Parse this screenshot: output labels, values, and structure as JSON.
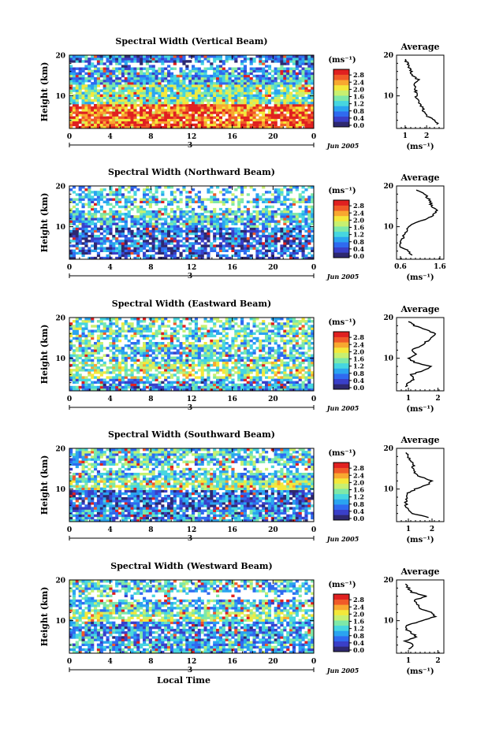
{
  "figure": {
    "time_axis_label": "Local Time",
    "date_label": "Jun 2005",
    "day_label": "3",
    "colorbar_unit": "(ms⁻¹)",
    "colorbar_ticks": [
      "0.0",
      "0.4",
      "0.8",
      "1.2",
      "1.6",
      "2.0",
      "2.4",
      "2.8"
    ],
    "colormap": [
      "#2e2870",
      "#3a3fc8",
      "#2f6af0",
      "#2aa4f0",
      "#46d6e0",
      "#7ee8a8",
      "#c8f070",
      "#f4e83a",
      "#f8a830",
      "#f05a28",
      "#e02020"
    ],
    "average_title": "Average",
    "average_xlabel": "(ms⁻¹)"
  },
  "chart_data": [
    {
      "type": "heatmap",
      "title": "Spectral Width (Vertical Beam)",
      "ylabel": "Height (km)",
      "xlabel": "",
      "x_ticks": [
        "0",
        "4",
        "8",
        "12",
        "16",
        "20",
        "0"
      ],
      "xlim": [
        0,
        24
      ],
      "y_ticks": [
        "20",
        "10"
      ],
      "ylim": [
        2,
        20
      ],
      "colorbar_range": [
        0.0,
        2.8
      ],
      "profile": {
        "title": "Average",
        "xlabel": "(ms⁻¹)",
        "x_ticks": [
          "1",
          "2"
        ],
        "xlim": [
          0.6,
          2.8
        ],
        "heights": [
          3,
          4,
          5,
          6,
          7,
          8,
          9,
          10,
          11,
          12,
          13,
          14,
          15,
          16,
          17,
          18,
          19
        ],
        "values": [
          2.5,
          2.4,
          2.0,
          1.9,
          1.8,
          1.7,
          1.6,
          1.5,
          1.5,
          1.5,
          1.4,
          1.6,
          1.3,
          1.3,
          1.2,
          1.1,
          1.0
        ]
      }
    },
    {
      "type": "heatmap",
      "title": "Spectral Width (Northward Beam)",
      "ylabel": "Height (km)",
      "xlabel": "",
      "x_ticks": [
        "0",
        "4",
        "8",
        "12",
        "16",
        "20",
        "0"
      ],
      "xlim": [
        0,
        24
      ],
      "y_ticks": [
        "20",
        "10"
      ],
      "ylim": [
        2,
        20
      ],
      "colorbar_range": [
        0.0,
        2.8
      ],
      "profile": {
        "title": "Average",
        "xlabel": "(ms⁻¹)",
        "x_ticks": [
          "0.6",
          "1.6"
        ],
        "xlim": [
          0.5,
          1.7
        ],
        "heights": [
          3,
          4,
          5,
          6,
          7,
          8,
          9,
          10,
          11,
          12,
          13,
          14,
          15,
          16,
          17,
          18,
          19
        ],
        "values": [
          0.9,
          0.8,
          0.6,
          0.6,
          0.65,
          0.7,
          0.75,
          0.8,
          1.0,
          1.3,
          1.45,
          1.5,
          1.4,
          1.35,
          1.3,
          1.2,
          1.0
        ]
      }
    },
    {
      "type": "heatmap",
      "title": "Spectral Width (Eastward Beam)",
      "ylabel": "Height (km)",
      "xlabel": "",
      "x_ticks": [
        "0",
        "4",
        "8",
        "12",
        "16",
        "20",
        "0"
      ],
      "xlim": [
        0,
        24
      ],
      "y_ticks": [
        "20",
        "10"
      ],
      "ylim": [
        2,
        20
      ],
      "colorbar_range": [
        0.0,
        2.8
      ],
      "profile": {
        "title": "Average",
        "xlabel": "(ms⁻¹)",
        "x_ticks": [
          "1",
          "2"
        ],
        "xlim": [
          0.6,
          2.2
        ],
        "heights": [
          3,
          4,
          5,
          6,
          7,
          8,
          9,
          10,
          11,
          12,
          13,
          14,
          15,
          16,
          17,
          18,
          19
        ],
        "values": [
          0.9,
          1.0,
          1.2,
          1.1,
          1.5,
          1.8,
          1.2,
          1.0,
          1.3,
          1.1,
          1.4,
          1.6,
          1.8,
          1.9,
          1.6,
          1.2,
          1.0
        ]
      }
    },
    {
      "type": "heatmap",
      "title": "Spectral Width (Southward Beam)",
      "ylabel": "Height (km)",
      "xlabel": "",
      "x_ticks": [
        "0",
        "4",
        "8",
        "12",
        "16",
        "20",
        "0"
      ],
      "xlim": [
        0,
        24
      ],
      "y_ticks": [
        "20",
        "10"
      ],
      "ylim": [
        2,
        20
      ],
      "colorbar_range": [
        0.0,
        2.8
      ],
      "profile": {
        "title": "Average",
        "xlabel": "(ms⁻¹)",
        "x_ticks": [
          "1",
          "2"
        ],
        "xlim": [
          0.5,
          2.5
        ],
        "heights": [
          3,
          4,
          5,
          6,
          7,
          8,
          9,
          10,
          11,
          12,
          13,
          14,
          15,
          16,
          17,
          18,
          19
        ],
        "values": [
          1.9,
          1.2,
          1.0,
          0.9,
          0.9,
          0.95,
          1.0,
          1.3,
          1.8,
          2.0,
          1.5,
          1.3,
          1.2,
          1.2,
          1.1,
          1.0,
          0.9
        ]
      }
    },
    {
      "type": "heatmap",
      "title": "Spectral Width (Westward Beam)",
      "ylabel": "Height (km)",
      "xlabel": "Local Time",
      "x_ticks": [
        "0",
        "4",
        "8",
        "12",
        "16",
        "20",
        "0"
      ],
      "xlim": [
        0,
        24
      ],
      "y_ticks": [
        "20",
        "10"
      ],
      "ylim": [
        2,
        20
      ],
      "colorbar_range": [
        0.0,
        2.8
      ],
      "profile": {
        "title": "Average",
        "xlabel": "(ms⁻¹)",
        "x_ticks": [
          "1",
          "2"
        ],
        "xlim": [
          0.6,
          2.2
        ],
        "heights": [
          3,
          4,
          5,
          6,
          7,
          8,
          9,
          10,
          11,
          12,
          13,
          14,
          15,
          16,
          17,
          18,
          19
        ],
        "values": [
          1.0,
          1.2,
          0.9,
          1.3,
          1.1,
          0.9,
          1.0,
          1.5,
          1.9,
          1.8,
          1.4,
          1.3,
          1.2,
          1.6,
          1.1,
          1.0,
          0.9
        ]
      }
    }
  ]
}
